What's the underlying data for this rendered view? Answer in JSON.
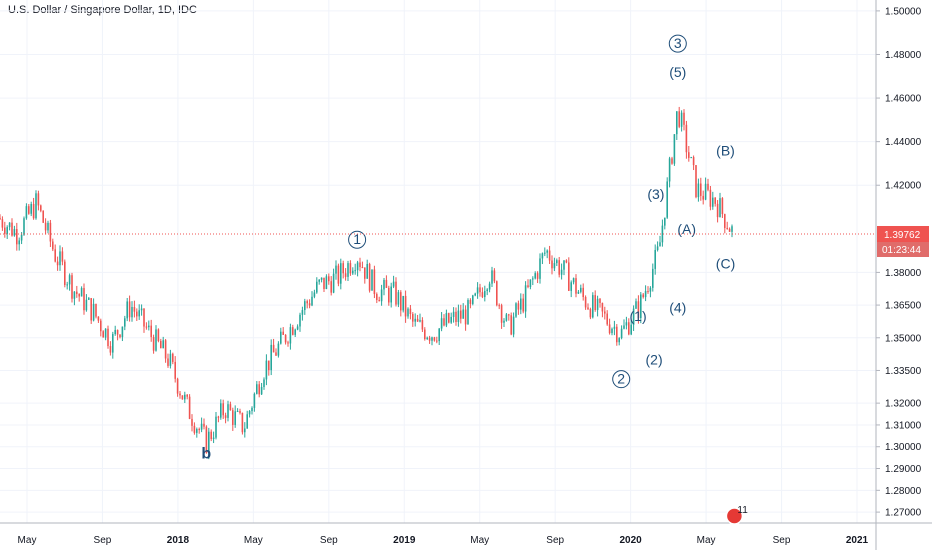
{
  "title": "U.S. Dollar / Singapore Dollar, 1D, IDC",
  "price_tag": {
    "price": "1.39762",
    "countdown": "01:23:44"
  },
  "colors": {
    "up": "#26a69a",
    "down": "#ef5350",
    "wave": "#1f4e79",
    "grid": "#f0f3fa",
    "price_line": "#ef5350"
  },
  "icon": {
    "name": "us-flag-calendar-icon",
    "label": "11"
  },
  "chart_data": {
    "type": "candlestick",
    "ylim": [
      1.265,
      1.505
    ],
    "y_ticks": [
      "1.50000",
      "1.48000",
      "1.46000",
      "1.44000",
      "1.42000",
      "1.38000",
      "1.36500",
      "1.35000",
      "1.33500",
      "1.32000",
      "1.31000",
      "1.30000",
      "1.29000",
      "1.28000",
      "1.27000"
    ],
    "x_ticks": [
      {
        "label": "May",
        "date": "2017-05",
        "bold": false
      },
      {
        "label": "Sep",
        "date": "2017-09",
        "bold": false
      },
      {
        "label": "2018",
        "date": "2018-01",
        "bold": true
      },
      {
        "label": "May",
        "date": "2018-05",
        "bold": false
      },
      {
        "label": "Sep",
        "date": "2018-09",
        "bold": false
      },
      {
        "label": "2019",
        "date": "2019-01",
        "bold": true
      },
      {
        "label": "May",
        "date": "2019-05",
        "bold": false
      },
      {
        "label": "Sep",
        "date": "2019-09",
        "bold": false
      },
      {
        "label": "2020",
        "date": "2020-01",
        "bold": true
      },
      {
        "label": "May",
        "date": "2020-05",
        "bold": false
      },
      {
        "label": "Sep",
        "date": "2020-09",
        "bold": false
      },
      {
        "label": "2021",
        "date": "2021-01",
        "bold": true
      }
    ],
    "series": [
      {
        "date": "2017-03",
        "close": 1.405
      },
      {
        "date": "2017-04",
        "close": 1.398
      },
      {
        "date": "2017-05",
        "close": 1.412
      },
      {
        "date": "2017-06",
        "close": 1.388
      },
      {
        "date": "2017-07",
        "close": 1.372
      },
      {
        "date": "2017-08",
        "close": 1.362
      },
      {
        "date": "2017-09",
        "close": 1.348
      },
      {
        "date": "2017-10",
        "close": 1.365
      },
      {
        "date": "2017-11",
        "close": 1.352
      },
      {
        "date": "2017-12",
        "close": 1.34
      },
      {
        "date": "2018-01",
        "close": 1.318
      },
      {
        "date": "2018-02",
        "close": 1.302
      },
      {
        "date": "2018-03",
        "close": 1.318
      },
      {
        "date": "2018-04",
        "close": 1.309
      },
      {
        "date": "2018-05",
        "close": 1.335
      },
      {
        "date": "2018-06",
        "close": 1.348
      },
      {
        "date": "2018-07",
        "close": 1.362
      },
      {
        "date": "2018-08",
        "close": 1.374
      },
      {
        "date": "2018-09",
        "close": 1.378
      },
      {
        "date": "2018-10",
        "close": 1.388
      },
      {
        "date": "2018-11",
        "close": 1.372
      },
      {
        "date": "2018-12",
        "close": 1.37
      },
      {
        "date": "2019-01",
        "close": 1.356
      },
      {
        "date": "2019-02",
        "close": 1.352
      },
      {
        "date": "2019-03",
        "close": 1.358
      },
      {
        "date": "2019-04",
        "close": 1.362
      },
      {
        "date": "2019-05",
        "close": 1.38
      },
      {
        "date": "2019-06",
        "close": 1.354
      },
      {
        "date": "2019-07",
        "close": 1.37
      },
      {
        "date": "2019-08",
        "close": 1.39
      },
      {
        "date": "2019-09",
        "close": 1.38
      },
      {
        "date": "2019-10",
        "close": 1.368
      },
      {
        "date": "2019-11",
        "close": 1.36
      },
      {
        "date": "2019-12",
        "close": 1.352
      },
      {
        "date": "2020-01",
        "close": 1.365
      },
      {
        "date": "2020-02",
        "close": 1.39
      },
      {
        "date": "2020-03",
        "close": 1.455
      },
      {
        "date": "2020-04",
        "close": 1.418
      },
      {
        "date": "2020-05",
        "close": 1.413
      },
      {
        "date": "2020-06",
        "close": 1.397
      }
    ],
    "wave_labels": [
      {
        "text": "b",
        "date": "2018-02",
        "price": 1.297,
        "circled": false,
        "bold": true
      },
      {
        "text": "1",
        "date": "2018-10",
        "price": 1.395,
        "circled": true
      },
      {
        "text": "2",
        "date": "2019-12",
        "price": 1.331,
        "circled": true
      },
      {
        "text": "3",
        "date": "2020-03",
        "price": 1.485,
        "circled": true
      },
      {
        "text": "(1)",
        "date": "2020-01",
        "price": 1.36,
        "circled": false
      },
      {
        "text": "(2)",
        "date": "2020-01",
        "price": 1.34,
        "circled": false
      },
      {
        "text": "(3)",
        "date": "2020-02",
        "price": 1.416,
        "circled": false
      },
      {
        "text": "(4)",
        "date": "2020-03",
        "price": 1.364,
        "circled": false
      },
      {
        "text": "(5)",
        "date": "2020-03",
        "price": 1.472,
        "circled": false
      },
      {
        "text": "(A)",
        "date": "2020-04",
        "price": 1.4,
        "circled": false
      },
      {
        "text": "(B)",
        "date": "2020-05",
        "price": 1.436,
        "circled": false
      },
      {
        "text": "(C)",
        "date": "2020-05",
        "price": 1.384,
        "circled": false
      }
    ]
  }
}
